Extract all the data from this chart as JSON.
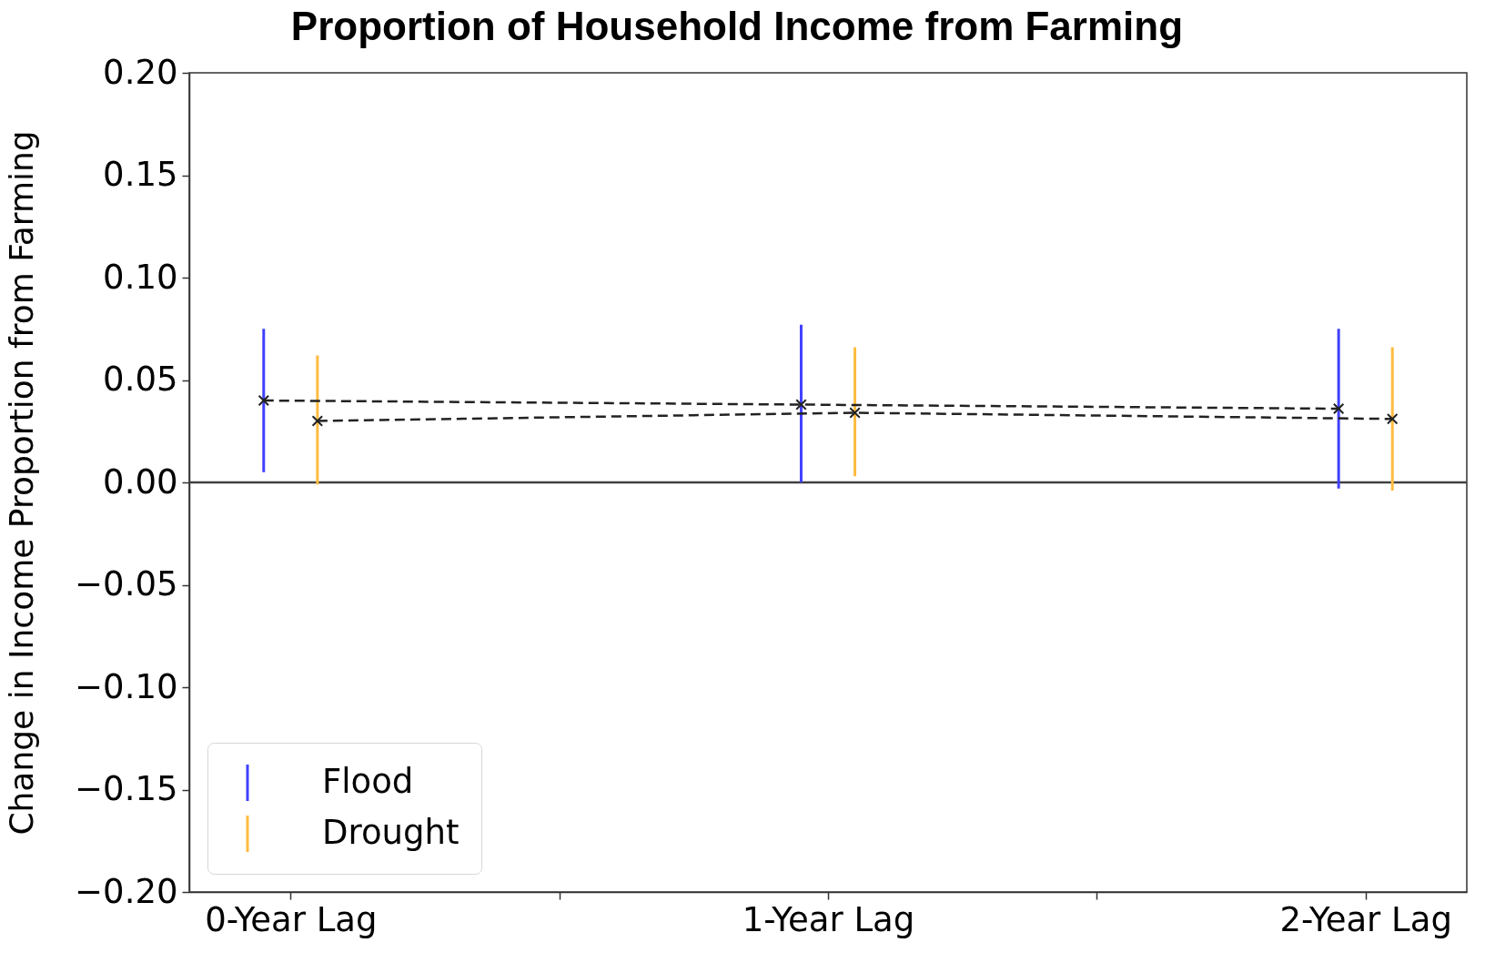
{
  "chart_data": {
    "type": "line",
    "title": "Proportion of Household Income from Farming",
    "ylabel": "Change in Income Proportion from Farming",
    "xlim": [
      -0.18,
      2.18
    ],
    "xticks": [
      {
        "value": 0,
        "label": "0-Year Lag"
      },
      {
        "value": 0.5,
        "label": null
      },
      {
        "value": 1,
        "label": "1-Year Lag"
      },
      {
        "value": 1.5,
        "label": null
      },
      {
        "value": 2,
        "label": "2-Year Lag"
      }
    ],
    "ylim": [
      -0.2,
      0.2
    ],
    "yticks": [
      {
        "value": -0.2,
        "label": "−0.20"
      },
      {
        "value": -0.15,
        "label": "−0.15"
      },
      {
        "value": -0.1,
        "label": "−0.10"
      },
      {
        "value": -0.05,
        "label": "−0.05"
      },
      {
        "value": 0,
        "label": "0.00"
      },
      {
        "value": 0.05,
        "label": "0.05"
      },
      {
        "value": 0.1,
        "label": "0.10"
      },
      {
        "value": 0.15,
        "label": "0.15"
      },
      {
        "value": 0.2,
        "label": "0.20"
      }
    ],
    "series": [
      {
        "color": "#222222",
        "line_style": "dashed",
        "marker": "cross",
        "x": [
          -0.05,
          0.95,
          1.95
        ],
        "values": [
          0.04,
          0.038,
          0.036
        ]
      },
      {
        "color": "#222222",
        "line_style": "dashed",
        "marker": "cross",
        "x": [
          0.05,
          1.05,
          2.05
        ],
        "values": [
          0.03,
          0.034,
          0.031
        ]
      },
      {
        "name": "Flood",
        "type": "bar",
        "color": "#4040ff",
        "x": [
          -0.05,
          0.95,
          1.95
        ],
        "base": [
          0.005,
          0,
          -0.003
        ],
        "values": [
          0.07,
          0.077,
          0.078
        ]
      },
      {
        "name": "Drought",
        "type": "bar",
        "color": "#ffbc40",
        "x": [
          0.05,
          1.05,
          2.05
        ],
        "base": [
          -0.001,
          0.003,
          -0.004
        ],
        "values": [
          0.063,
          0.063,
          0.07
        ]
      }
    ],
    "ref_lines": [
      {
        "axis": "y",
        "value": 0,
        "color": "#404040"
      }
    ],
    "legend": "bottom left"
  }
}
